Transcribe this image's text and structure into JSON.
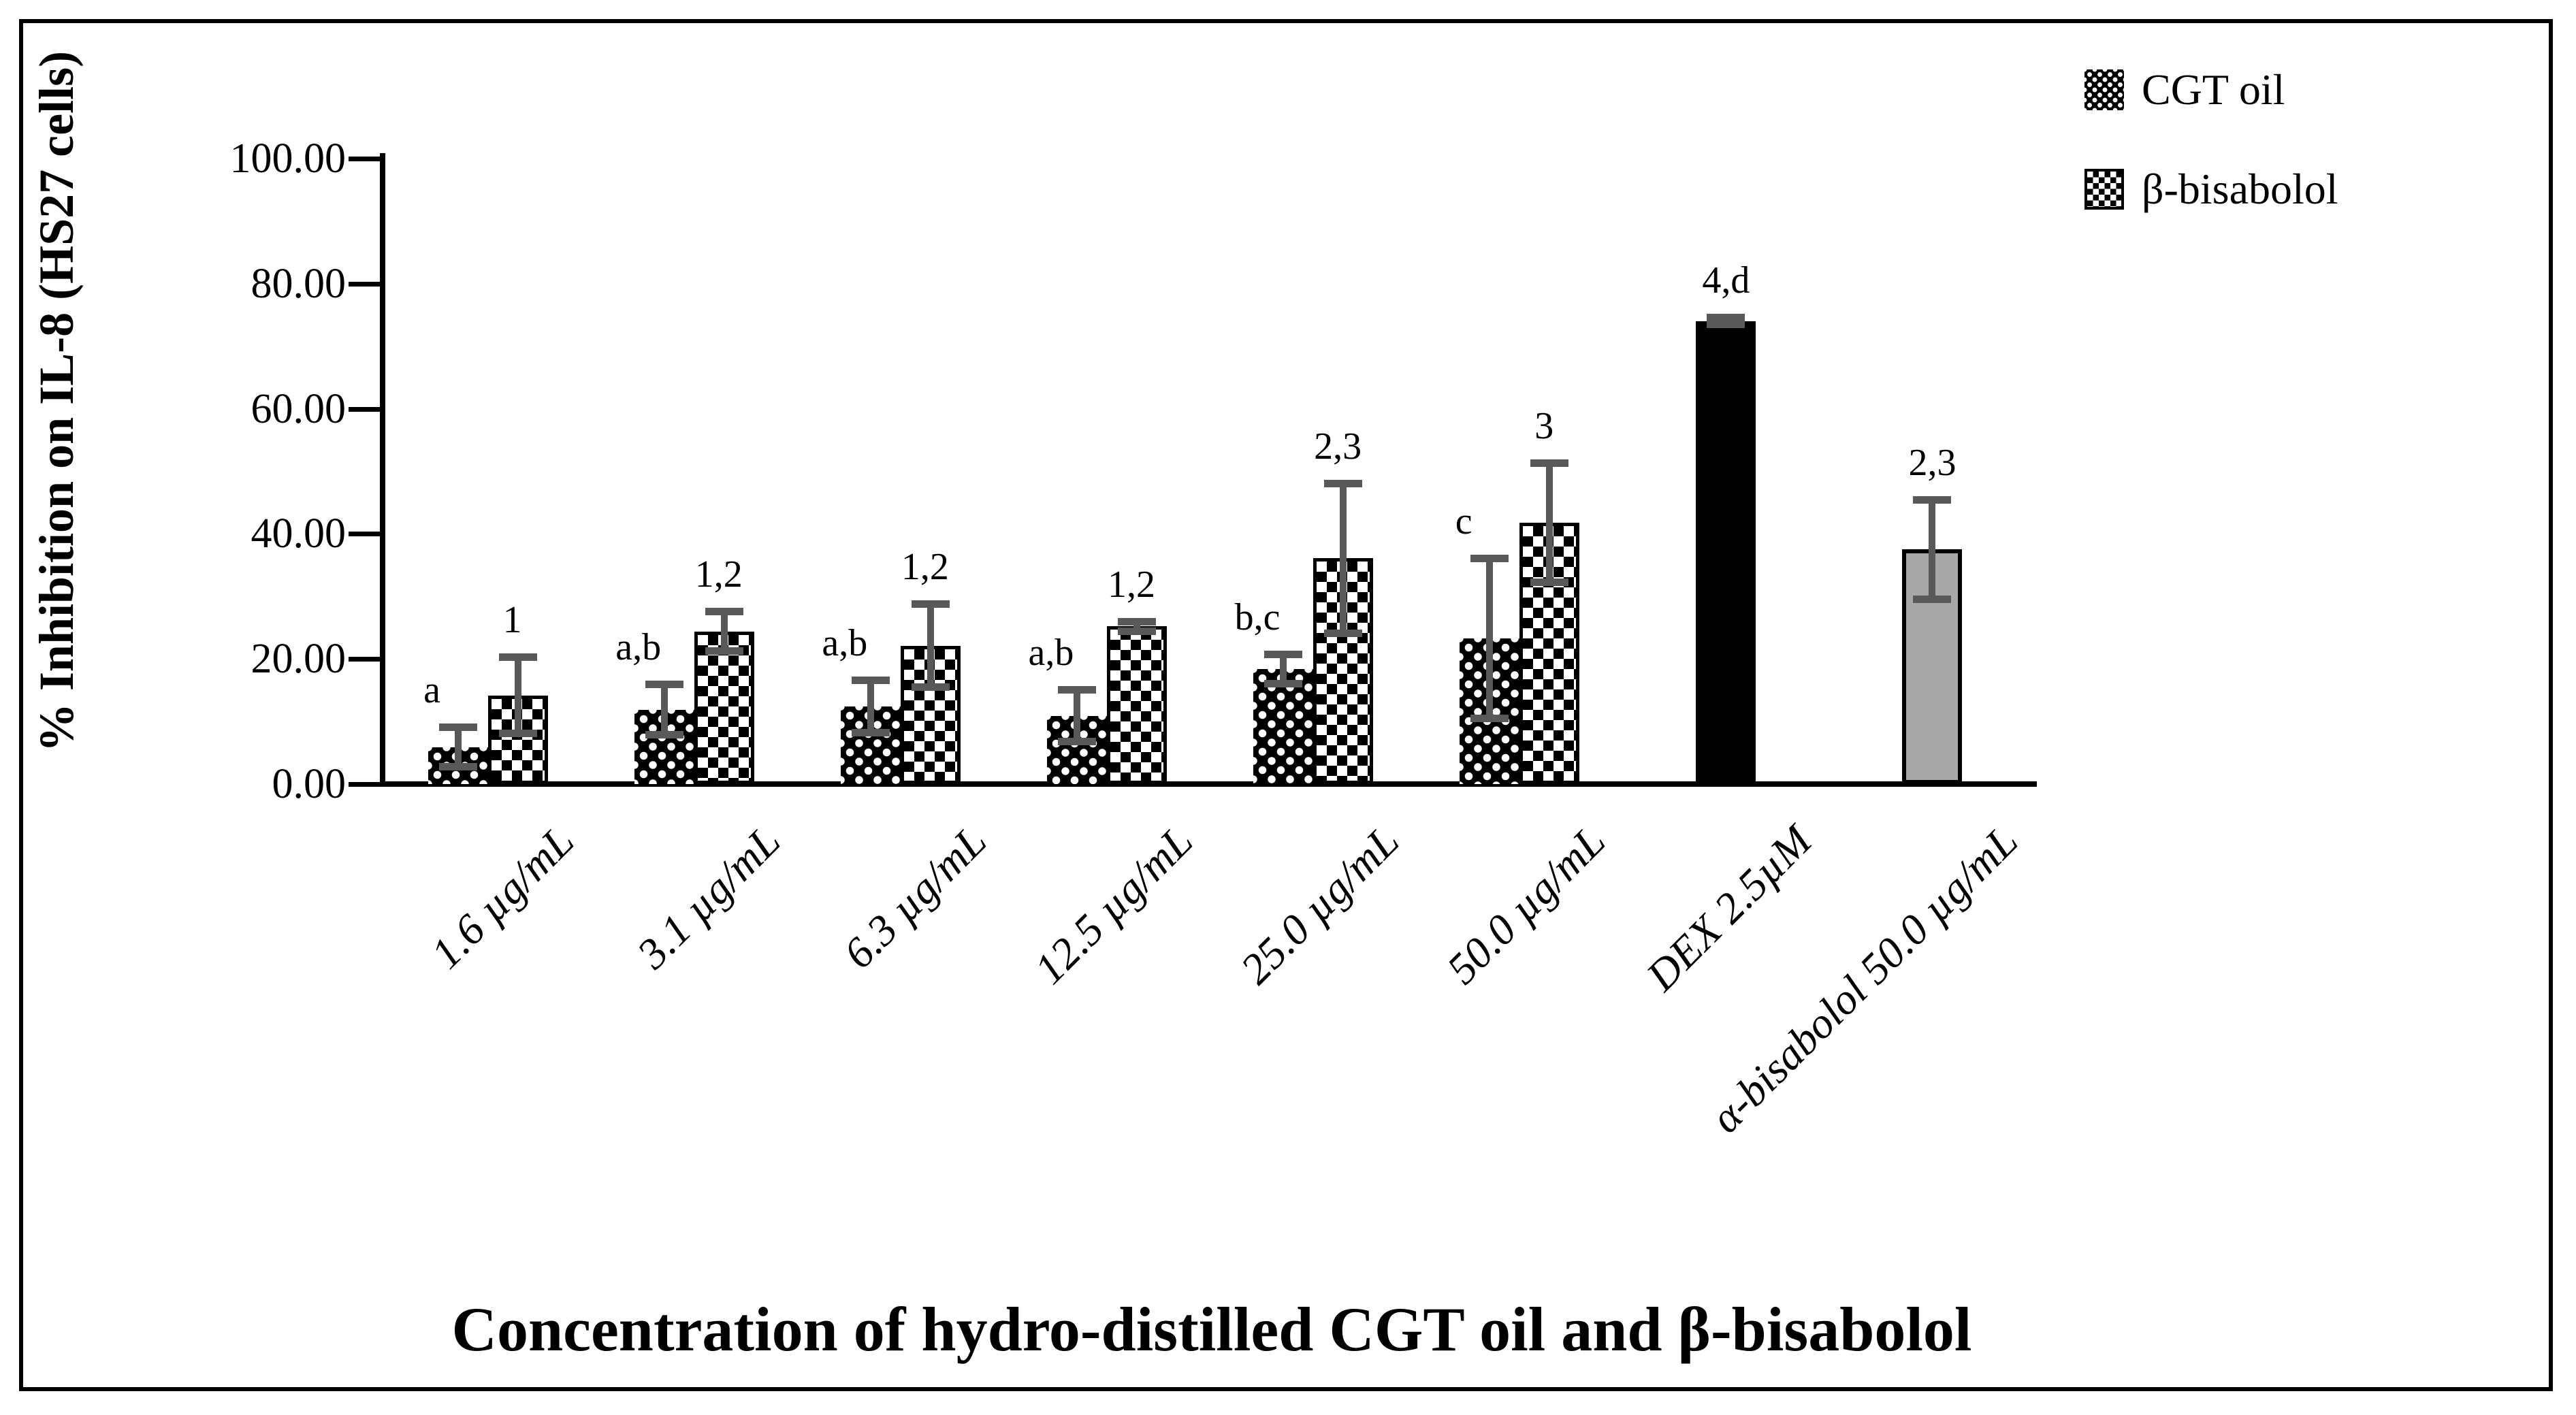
{
  "figure": {
    "y_axis_title": "% Inhibition on IL-8 (HS27 cells)",
    "x_axis_title": "Concentration of hydro-distilled CGT oil and β-bisabolol"
  },
  "legend": [
    {
      "label": "CGT oil",
      "swatch": "black-dotted-pattern"
    },
    {
      "label": "β-bisabolol",
      "swatch": "black-white-checker-pattern"
    }
  ],
  "chart_data": {
    "type": "bar",
    "title": "",
    "xlabel": "Concentration of hydro-distilled CGT oil and β-bisabolol",
    "ylabel": "% Inhibition on IL-8 (HS27 cells)",
    "ylim": [
      0,
      100
    ],
    "y_tick_labels": [
      "0.00",
      "20.00",
      "40.00",
      "60.00",
      "80.00",
      "100.00"
    ],
    "grid": false,
    "legend_position": "top-right",
    "error_bar_color": "#595959",
    "categories": [
      "1.6 µg/mL",
      "3.1 µg/mL",
      "6.3 µg/mL",
      "12.5 µg/mL",
      "25.0 µg/mL",
      "50.0 µg/mL",
      "DEX 2.5µM",
      "α-bisabolol 50.0 µg/mL"
    ],
    "series": [
      {
        "name": "CGT oil",
        "pattern": "dots",
        "values": [
          5.9,
          11.9,
          12.4,
          10.9,
          18.4,
          23.3
        ],
        "errors": [
          3.2,
          4.1,
          4.2,
          4.2,
          2.4,
          12.8
        ],
        "annotations": [
          "a",
          "a,b",
          "a,b",
          "a,b",
          "b,c",
          "c"
        ]
      },
      {
        "name": "β-bisabolol",
        "pattern": "checker",
        "values": [
          14.2,
          24.4,
          22.1,
          25.2,
          36.1,
          41.8
        ],
        "errors": [
          6.1,
          3.2,
          6.7,
          0.8,
          12.0,
          9.6
        ],
        "annotations": [
          "1",
          "1,2",
          "1,2",
          "1,2",
          "2,3",
          "3"
        ]
      }
    ],
    "single_bars": [
      {
        "category": "DEX 2.5µM",
        "index": 6,
        "value": 74.0,
        "error": 0.6,
        "annotation": "4,d",
        "fill": "#000000"
      },
      {
        "category": "α-bisabolol 50.0 µg/mL",
        "index": 7,
        "value": 37.5,
        "error": 8.0,
        "annotation": "2,3",
        "fill": "#a8a8a8"
      }
    ]
  }
}
